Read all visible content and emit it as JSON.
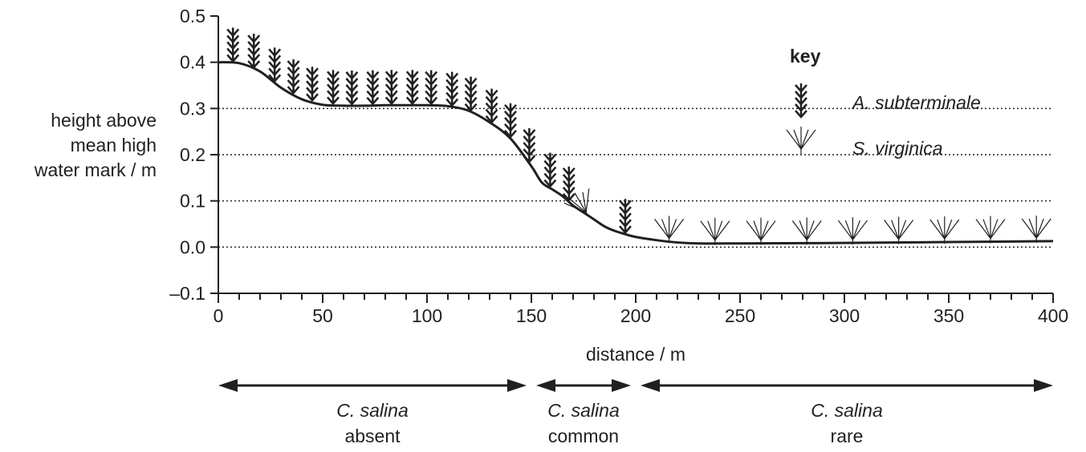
{
  "chart_data": {
    "type": "line",
    "xlabel": "distance / m",
    "ylabel": [
      "height above",
      "mean high",
      "water mark / m"
    ],
    "xlim": [
      0,
      400
    ],
    "ylim": [
      -0.1,
      0.5
    ],
    "xticks": [
      0,
      50,
      100,
      150,
      200,
      250,
      300,
      350,
      400
    ],
    "xtick_labels": [
      "0",
      "50",
      "100",
      "150",
      "200",
      "250",
      "300",
      "350",
      "400"
    ],
    "yticks": [
      -0.1,
      0.0,
      0.1,
      0.2,
      0.3,
      0.4,
      0.5
    ],
    "ytick_labels": [
      "–0.1",
      "0.0",
      "0.1",
      "0.2",
      "0.3",
      "0.4",
      "0.5"
    ],
    "reference_lines_y": [
      0.0,
      0.1,
      0.2,
      0.3
    ],
    "series": [
      {
        "x": [
          0,
          10,
          20,
          30,
          40,
          50,
          60,
          70,
          80,
          90,
          100,
          110,
          120,
          130,
          140,
          150,
          155,
          160,
          165,
          170,
          175,
          180,
          185,
          190,
          195,
          200,
          210,
          220,
          230,
          250,
          300,
          350,
          400
        ],
        "y": [
          0.4,
          0.398,
          0.38,
          0.345,
          0.32,
          0.308,
          0.306,
          0.306,
          0.307,
          0.307,
          0.307,
          0.305,
          0.295,
          0.27,
          0.235,
          0.175,
          0.14,
          0.125,
          0.11,
          0.09,
          0.075,
          0.06,
          0.045,
          0.035,
          0.028,
          0.022,
          0.015,
          0.01,
          0.008,
          0.008,
          0.009,
          0.011,
          0.013
        ]
      }
    ],
    "species_markers": [
      {
        "name": "A. subterminale",
        "x": [
          7,
          17,
          27,
          36,
          45,
          55,
          64,
          74,
          83,
          93,
          102,
          112,
          121,
          131,
          140,
          149,
          159,
          168,
          195
        ]
      },
      {
        "name": "S. virginica",
        "x": [
          177,
          216,
          238,
          260,
          282,
          304,
          326,
          348,
          370,
          392
        ]
      }
    ],
    "legend": {
      "title": "key",
      "placement": "top-right",
      "entries": [
        "A. subterminale",
        "S. virginica"
      ]
    },
    "zones": [
      {
        "from": 0,
        "to": 150,
        "species": "C. salina",
        "status": "absent"
      },
      {
        "from": 150,
        "to": 200,
        "species": "C. salina",
        "status": "common"
      },
      {
        "from": 200,
        "to": 400,
        "species": "C. salina",
        "status": "rare"
      }
    ],
    "grid": false
  }
}
